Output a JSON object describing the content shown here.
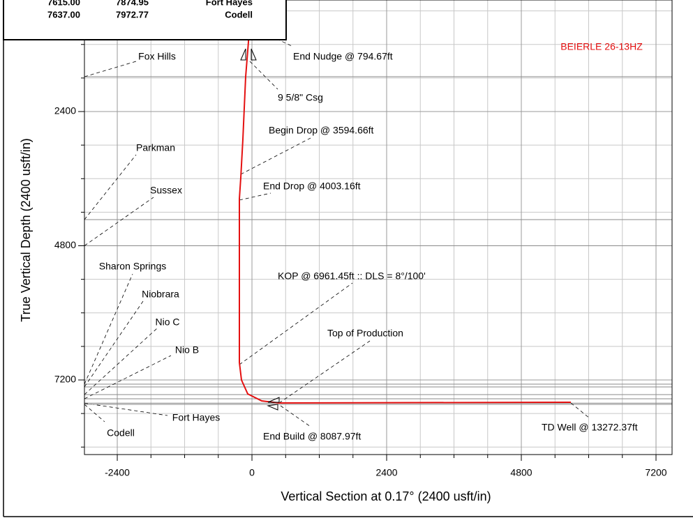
{
  "chart_data": {
    "type": "line",
    "x_label": "Vertical Section at 0.17° (2400 usft/in)",
    "y_label": "True Vertical Depth (2400 usft/in)",
    "xlim": [
      -2985,
      7486
    ],
    "ylim": [
      405,
      8534
    ],
    "y_inverted": true,
    "xticks": [
      -2400,
      0,
      2400,
      4800,
      7200
    ],
    "yticks": [
      2400,
      4800,
      7200
    ],
    "x_minor_ticks": [
      -1800,
      -1200,
      -600,
      600,
      1200,
      1800,
      3000,
      3600,
      4200,
      5400,
      6000,
      6600
    ],
    "y_minor_ticks": [
      600,
      1200,
      1800,
      3000,
      3600,
      4200,
      5400,
      6000,
      6600,
      7800,
      8400
    ],
    "grid": true,
    "series": [
      {
        "name": "BEIERLE 26-13HZ",
        "color": "#e41010",
        "x": [
          -37,
          -62,
          -112,
          -162,
          -199,
          -224,
          -224,
          -187,
          -75,
          174,
          485,
          5683
        ],
        "values": [
          405,
          1153,
          1777,
          2899,
          3584,
          3958,
          6888,
          7200,
          7449,
          7574,
          7611,
          7599
        ]
      }
    ],
    "formations": [
      {
        "name": "Fox Hills",
        "tvd": 1777
      },
      {
        "name": "Parkman",
        "tvd": 4332
      },
      {
        "name": "Sussex",
        "tvd": 4800
      },
      {
        "name": "Sharon Springs",
        "tvd": 7275
      },
      {
        "name": "Niobrara",
        "tvd": 7324
      },
      {
        "name": "Nio C",
        "tvd": 7461
      },
      {
        "name": "Nio B",
        "tvd": 7536
      },
      {
        "name": "Fort Hayes",
        "tvd": 7615
      },
      {
        "name": "Codell",
        "tvd": 7637
      }
    ],
    "annotations": [
      "End Nudge @ 794.67ft",
      "9 5/8\" Csg",
      "Begin Drop @ 3594.66ft",
      "End Drop @ 4003.16ft",
      "KOP @ 6961.45ft :: DLS = 8°/100'",
      "Top of Production",
      "End Build @ 8087.97ft",
      "TD Well @ 13272.37ft"
    ],
    "formation_table": [
      [
        "7615.00",
        "7874.95",
        "Fort Hayes"
      ],
      [
        "7637.00",
        "7972.77",
        "Codell"
      ]
    ]
  }
}
